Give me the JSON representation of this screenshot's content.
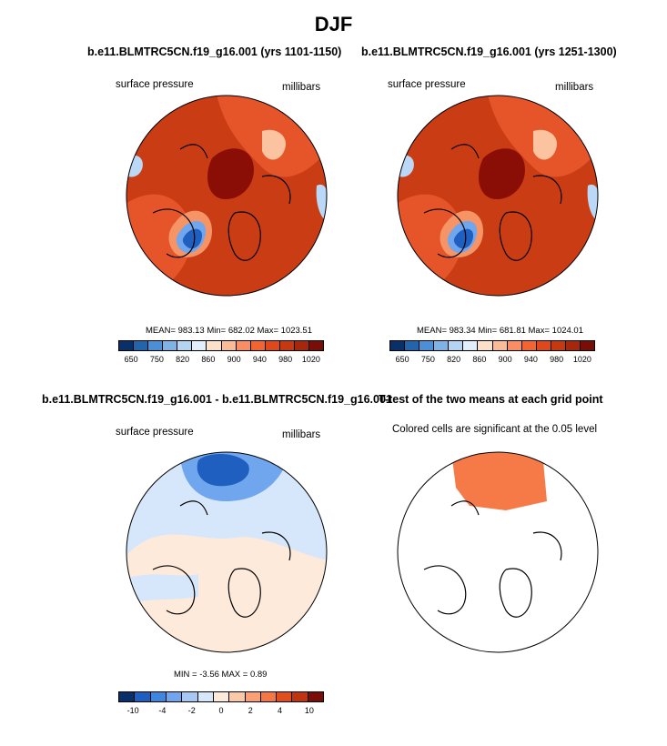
{
  "title": "DJF",
  "panels": {
    "top_left": {
      "title": "b.e11.BLMTRC5CN.f19_g16.001 (yrs 1101-1150)",
      "left_label": "surface pressure",
      "right_label": "millibars",
      "stats": "MEAN= 983.13  Min= 682.02  Max= 1023.51"
    },
    "top_right": {
      "title": "b.e11.BLMTRC5CN.f19_g16.001 (yrs 1251-1300)",
      "left_label": "surface pressure",
      "right_label": "millibars",
      "stats": "MEAN= 983.34  Min= 681.81  Max= 1024.01"
    },
    "bottom_left": {
      "title": "b.e11.BLMTRC5CN.f19_g16.001 - b.e11.BLMTRC5CN.f19_g16.001",
      "left_label": "surface pressure",
      "right_label": "millibars",
      "stats": "MIN =  -3.56 MAX =   0.89"
    },
    "bottom_right": {
      "title": "T-test of the two means at each grid point",
      "subtitle": "Colored cells are significant at the 0.05 level"
    }
  },
  "colorbars": {
    "absolute": {
      "ticks": [
        "650",
        "750",
        "820",
        "860",
        "900",
        "940",
        "980",
        "1020"
      ],
      "colors": [
        "#08306b",
        "#2166ac",
        "#4a90d9",
        "#7fb3e8",
        "#b3d4f2",
        "#e2eefa",
        "#fde0c8",
        "#fcbb97",
        "#fb8d62",
        "#f4642f",
        "#e0481a",
        "#c8380e",
        "#a8260a",
        "#7a0d06"
      ]
    },
    "difference": {
      "ticks": [
        "-10",
        "-4",
        "-2",
        "0",
        "2",
        "4",
        "10"
      ],
      "colors": [
        "#08306b",
        "#1f5fbf",
        "#3f86e0",
        "#6fa6ee",
        "#a5c8f5",
        "#d6e7fb",
        "#fdeadb",
        "#fcc9a7",
        "#fb9f74",
        "#f67644",
        "#e24d1d",
        "#c03410",
        "#7a0d06"
      ]
    }
  },
  "map_colors": {
    "base_high": "#c93c14",
    "ridge": "#8b0e06",
    "mid": "#e6552a",
    "light_orange": "#f79466",
    "peach": "#fcc3a0",
    "low_blue": "#1f5fbf",
    "mid_blue": "#6fa6ee",
    "light_blue": "#d6e7fb",
    "pale_blue": "#bcd8f7",
    "pale_peach": "#fdeadb",
    "sig_orange": "#f67a48"
  }
}
